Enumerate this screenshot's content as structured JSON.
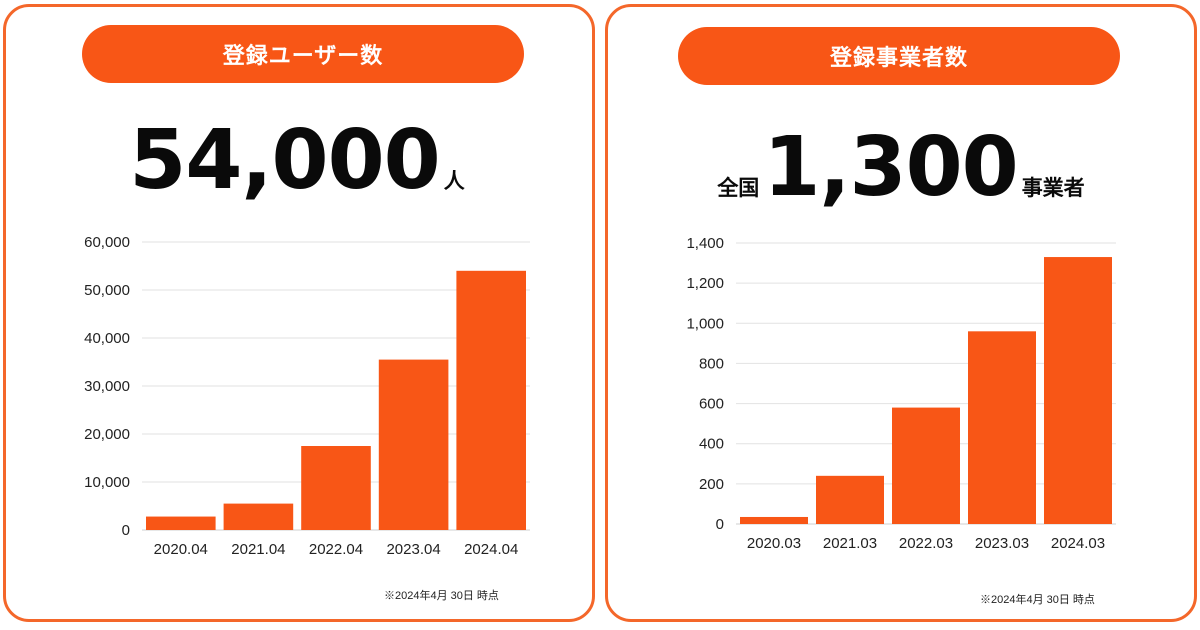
{
  "colors": {
    "accent": "#f85616",
    "border": "#f4672a",
    "grid": "#e2e2e2",
    "text": "#0a0a0a"
  },
  "left": {
    "title": "登録ユーザー数",
    "prefix": "",
    "headline_number": "54,000",
    "headline_unit": "人",
    "note": "※2024年4月 30日 時点"
  },
  "right": {
    "title": "登録事業者数",
    "prefix": "全国",
    "headline_number": "1,300",
    "headline_unit": "事業者",
    "note": "※2024年4月 30日 時点"
  },
  "chart_data": [
    {
      "type": "bar",
      "categories": [
        "2020.04",
        "2021.04",
        "2022.04",
        "2023.04",
        "2024.04"
      ],
      "values": [
        2800,
        5500,
        17500,
        35500,
        54000
      ],
      "ylim": [
        0,
        60000
      ],
      "yticks": [
        "0",
        "10,000",
        "20,000",
        "30,000",
        "40,000",
        "50,000",
        "60,000"
      ],
      "grid": true,
      "title": "",
      "xlabel": "",
      "ylabel": ""
    },
    {
      "type": "bar",
      "categories": [
        "2020.03",
        "2021.03",
        "2022.03",
        "2023.03",
        "2024.03"
      ],
      "values": [
        35,
        240,
        580,
        960,
        1330
      ],
      "ylim": [
        0,
        1400
      ],
      "yticks": [
        "0",
        "200",
        "400",
        "600",
        "800",
        "1,000",
        "1,200",
        "1,400"
      ],
      "grid": true,
      "title": "",
      "xlabel": "",
      "ylabel": ""
    }
  ]
}
